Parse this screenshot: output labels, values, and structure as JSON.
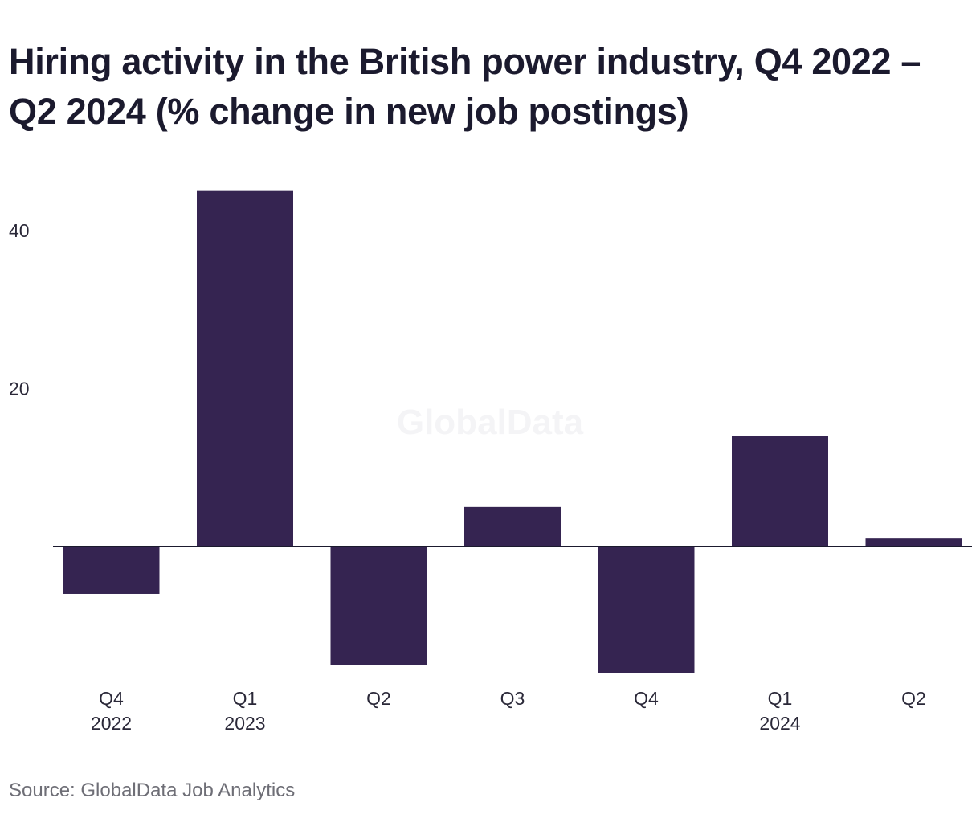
{
  "title": "Hiring activity in the British power industry, Q4 2022 – Q2 2024 (% change in new job postings)",
  "source": "Source: GlobalData Job Analytics",
  "watermark": "GlobalData",
  "colors": {
    "bar": "#352451",
    "axis": "#1b1a2e",
    "text": "#2a2838",
    "source": "#6e6e76"
  },
  "chart_data": {
    "type": "bar",
    "categories": [
      [
        "Q4",
        "2022"
      ],
      [
        "Q1",
        "2023"
      ],
      [
        "Q2"
      ],
      [
        "Q3"
      ],
      [
        "Q4"
      ],
      [
        "Q1",
        "2024"
      ],
      [
        "Q2"
      ]
    ],
    "values": [
      -6,
      45,
      -15,
      5,
      -16,
      14,
      1
    ],
    "title": "Hiring activity in the British power industry, Q4 2022 – Q2 2024 (% change in new job postings)",
    "xlabel": "",
    "ylabel": "",
    "yticks": [
      20,
      40
    ],
    "ylim": [
      -16,
      45
    ],
    "grid": false,
    "legend": "none"
  }
}
